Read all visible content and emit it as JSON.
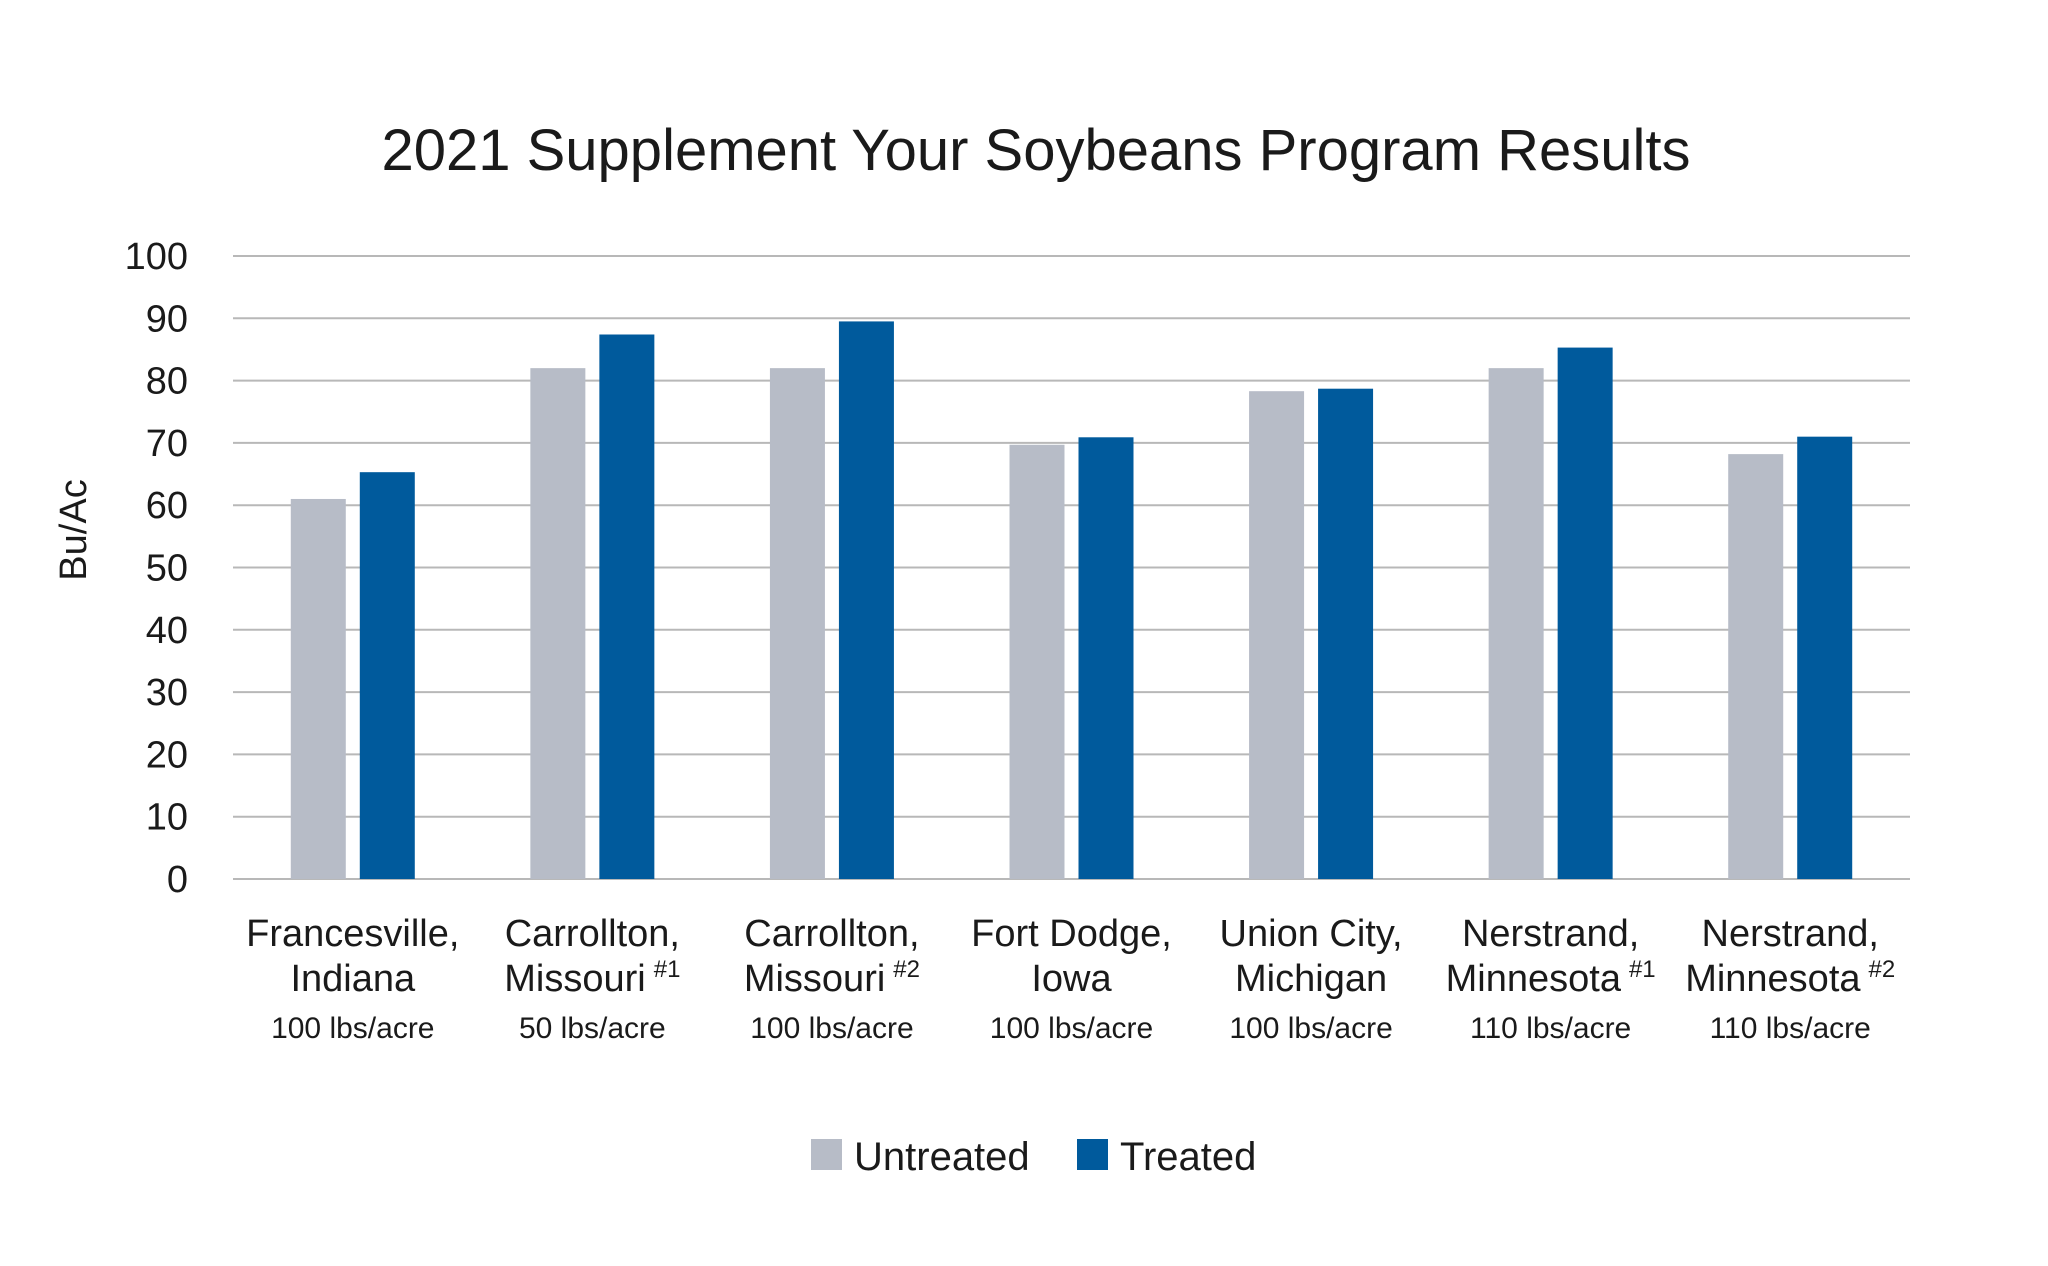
{
  "chart_data": {
    "type": "bar",
    "title": "2021 Supplement Your Soybeans Program Results",
    "ylabel": "Bu/Ac",
    "ylim": [
      0,
      100
    ],
    "yticks": [
      0,
      10,
      20,
      30,
      40,
      50,
      60,
      70,
      80,
      90,
      100
    ],
    "grid": true,
    "legend_position": "bottom",
    "categories": [
      {
        "line1": "Francesville,",
        "line2": "Indiana",
        "mark": "",
        "rate": "100 lbs/acre"
      },
      {
        "line1": "Carrollton,",
        "line2": "Missouri",
        "mark": "#1",
        "rate": "50 lbs/acre"
      },
      {
        "line1": "Carrollton,",
        "line2": "Missouri",
        "mark": "#2",
        "rate": "100 lbs/acre"
      },
      {
        "line1": "Fort Dodge,",
        "line2": "Iowa",
        "mark": "",
        "rate": "100 lbs/acre"
      },
      {
        "line1": "Union City,",
        "line2": "Michigan",
        "mark": "",
        "rate": "100 lbs/acre"
      },
      {
        "line1": "Nerstrand,",
        "line2": "Minnesota",
        "mark": "#1",
        "rate": "110 lbs/acre"
      },
      {
        "line1": "Nerstrand,",
        "line2": "Minnesota",
        "mark": "#2",
        "rate": "110 lbs/acre"
      }
    ],
    "series": [
      {
        "name": "Untreated",
        "color": "#b7bcc7",
        "values": [
          61,
          82,
          82,
          69.7,
          78.3,
          82,
          68.2
        ]
      },
      {
        "name": "Treated",
        "color": "#005a9c",
        "values": [
          65.3,
          87.4,
          89.5,
          70.9,
          78.7,
          85.3,
          71
        ]
      }
    ]
  }
}
